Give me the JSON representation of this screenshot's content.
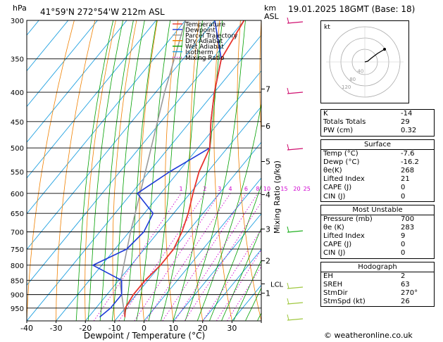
{
  "header": {
    "location": "41°59'N  272°54'W  212m  ASL",
    "datetime": "19.01.2025  18GMT  (Base: 18)",
    "left_unit": "hPa",
    "right_unit_top": "km",
    "right_unit_bottom": "ASL",
    "mixing_axis_title": "Mixing Ratio (g/kg)",
    "x_axis_title": "Dewpoint / Temperature (°C)",
    "lcl_label": "LCL",
    "footer": "© weatheronline.co.uk"
  },
  "legend": [
    {
      "label": "Temperature",
      "color": "#e8342d",
      "style": "solid"
    },
    {
      "label": "Dewpoint",
      "color": "#1e3ad8",
      "style": "solid"
    },
    {
      "label": "Parcel Trajectory",
      "color": "#9a9a9a",
      "style": "solid"
    },
    {
      "label": "Dry Adiabat",
      "color": "#f08000",
      "style": "solid"
    },
    {
      "label": "Wet Adiabat",
      "color": "#00a000",
      "style": "solid"
    },
    {
      "label": "Isotherm",
      "color": "#1ea0e0",
      "style": "solid"
    },
    {
      "label": "Mixing Ratio",
      "color": "#d000d0",
      "style": "dotted"
    }
  ],
  "chart_data": {
    "type": "skew-t",
    "pressure_levels": [
      300,
      350,
      400,
      450,
      500,
      550,
      600,
      650,
      700,
      750,
      800,
      850,
      900,
      950
    ],
    "x_ticks": [
      -40,
      -30,
      -20,
      -10,
      0,
      10,
      20,
      30
    ],
    "xlim": [
      -40,
      40
    ],
    "ylim_hpa": [
      1000,
      300
    ],
    "height_km_labels": [
      {
        "km": "7",
        "p": 395
      },
      {
        "km": "6",
        "p": 458
      },
      {
        "km": "5",
        "p": 528
      },
      {
        "km": "4",
        "p": 603
      },
      {
        "km": "3",
        "p": 692
      },
      {
        "km": "2",
        "p": 786
      },
      {
        "km": "1",
        "p": 895
      }
    ],
    "mixing_ratio_labels": [
      "1",
      "2",
      "3",
      "4",
      "6",
      "8",
      "10",
      "15",
      "20",
      "25"
    ],
    "mixing_ratio_values": [
      1,
      2,
      3,
      4,
      6,
      8,
      10,
      15,
      20,
      25
    ],
    "lcl_pressure": 862,
    "temperature_profile": [
      {
        "p": 985,
        "t": -7.6
      },
      {
        "p": 950,
        "t": -10.0
      },
      {
        "p": 900,
        "t": -11.0
      },
      {
        "p": 850,
        "t": -11.0
      },
      {
        "p": 800,
        "t": -10.0
      },
      {
        "p": 750,
        "t": -10.0
      },
      {
        "p": 700,
        "t": -12.0
      },
      {
        "p": 650,
        "t": -15.0
      },
      {
        "p": 600,
        "t": -19.0
      },
      {
        "p": 550,
        "t": -23.0
      },
      {
        "p": 500,
        "t": -26.0
      },
      {
        "p": 450,
        "t": -33.0
      },
      {
        "p": 400,
        "t": -40.0
      },
      {
        "p": 350,
        "t": -47.0
      },
      {
        "p": 300,
        "t": -50.0
      }
    ],
    "dewpoint_profile": [
      {
        "p": 985,
        "t": -16.2
      },
      {
        "p": 950,
        "t": -15.0
      },
      {
        "p": 900,
        "t": -15.0
      },
      {
        "p": 850,
        "t": -19.0
      },
      {
        "p": 800,
        "t": -33.0
      },
      {
        "p": 750,
        "t": -26.0
      },
      {
        "p": 700,
        "t": -25.0
      },
      {
        "p": 650,
        "t": -27.0
      },
      {
        "p": 600,
        "t": -38.0
      },
      {
        "p": 550,
        "t": -33.0
      },
      {
        "p": 500,
        "t": -26.0
      },
      {
        "p": 450,
        "t": -33.0
      },
      {
        "p": 400,
        "t": -40.0
      },
      {
        "p": 350,
        "t": -47.0
      },
      {
        "p": 300,
        "t": -60.0
      }
    ],
    "parcel_profile": [
      {
        "p": 985,
        "t": -7.6
      },
      {
        "p": 862,
        "t": -18.5
      },
      {
        "p": 800,
        "t": -22.5
      },
      {
        "p": 700,
        "t": -29.5
      },
      {
        "p": 600,
        "t": -37.0
      },
      {
        "p": 500,
        "t": -46.0
      },
      {
        "p": 400,
        "t": -57.0
      },
      {
        "p": 300,
        "t": -70.0
      }
    ]
  },
  "hodograph": {
    "label": "kt",
    "ring_labels": [
      "40",
      "80",
      "120"
    ]
  },
  "indices": [
    {
      "label": "K",
      "value": "-14"
    },
    {
      "label": "Totals Totals",
      "value": "29"
    },
    {
      "label": "PW (cm)",
      "value": "0.32"
    }
  ],
  "surface": {
    "title": "Surface",
    "rows": [
      {
        "label": "Temp (°C)",
        "value": "-7.6"
      },
      {
        "label": "Dewp (°C)",
        "value": "-16.2"
      },
      {
        "label": "θe(K)",
        "value": "268"
      },
      {
        "label": "Lifted Index",
        "value": "21"
      },
      {
        "label": "CAPE (J)",
        "value": "0"
      },
      {
        "label": "CIN (J)",
        "value": "0"
      }
    ]
  },
  "most_unstable": {
    "title": "Most Unstable",
    "rows": [
      {
        "label": "Pressure (mb)",
        "value": "700"
      },
      {
        "label": "θe (K)",
        "value": "283"
      },
      {
        "label": "Lifted Index",
        "value": "9"
      },
      {
        "label": "CAPE (J)",
        "value": "0"
      },
      {
        "label": "CIN (J)",
        "value": "0"
      }
    ]
  },
  "hodograph_table": {
    "title": "Hodograph",
    "rows": [
      {
        "label": "EH",
        "value": "2"
      },
      {
        "label": "SREH",
        "value": "63"
      },
      {
        "label": "StmDir",
        "value": "270°"
      },
      {
        "label": "StmSpd (kt)",
        "value": "26"
      }
    ]
  },
  "colors": {
    "temperature": "#e8342d",
    "dewpoint": "#1e3ad8",
    "parcel": "#9a9a9a",
    "dry_adiabat": "#f08000",
    "wet_adiabat": "#00a000",
    "isotherm": "#1ea0e0",
    "mixing": "#d000d0",
    "wind_upper": "#d01070",
    "wind_mid": "#20b020",
    "wind_low": "#a0c840"
  }
}
